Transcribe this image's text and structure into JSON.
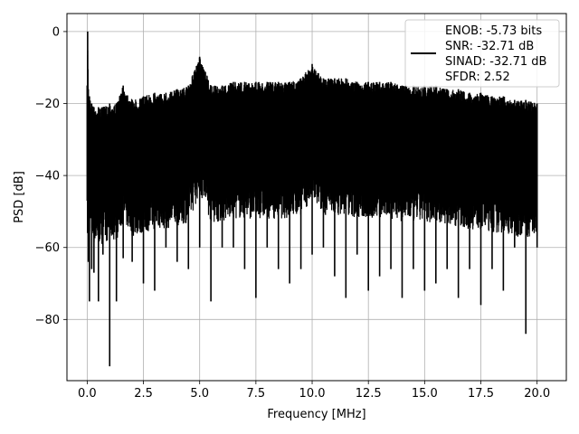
{
  "chart_data": {
    "type": "line",
    "xlabel": "Frequency [MHz]",
    "ylabel": "PSD [dB]",
    "xlim": [
      -0.9,
      21.3
    ],
    "ylim": [
      -97,
      5
    ],
    "xticks": [
      0.0,
      2.5,
      5.0,
      7.5,
      10.0,
      12.5,
      15.0,
      17.5,
      20.0
    ],
    "xtick_labels": [
      "0.0",
      "2.5",
      "5.0",
      "7.5",
      "10.0",
      "12.5",
      "15.0",
      "17.5",
      "20.0"
    ],
    "yticks": [
      0,
      -20,
      -40,
      -60,
      -80
    ],
    "ytick_labels": [
      "0",
      "−20",
      "−40",
      "−60",
      "−80"
    ],
    "grid": true,
    "legend_position": "top-right",
    "line_color": "#000000",
    "series": [
      {
        "name": "",
        "x": [
          0.0,
          0.02,
          0.05,
          0.1,
          0.2,
          0.3,
          0.5,
          0.7,
          1.0,
          1.3,
          1.6,
          2.0,
          2.5,
          3.0,
          3.5,
          4.0,
          4.5,
          5.0,
          5.5,
          6.0,
          6.5,
          7.0,
          7.5,
          8.0,
          8.5,
          9.0,
          9.5,
          10.0,
          10.5,
          11.0,
          11.5,
          12.0,
          12.5,
          13.0,
          13.5,
          14.0,
          14.5,
          15.0,
          15.5,
          16.0,
          16.5,
          17.0,
          17.5,
          18.0,
          18.5,
          19.0,
          19.5,
          20.0
        ],
        "upper": [
          -15,
          0,
          -16,
          -18,
          -20,
          -21,
          -21,
          -21,
          -20,
          -20,
          -15,
          -19,
          -18,
          -17,
          -17,
          -16,
          -15,
          -7,
          -15,
          -15,
          -14,
          -14,
          -14,
          -14,
          -14,
          -14,
          -13,
          -9,
          -13,
          -13,
          -13,
          -14,
          -14,
          -14,
          -14,
          -15,
          -15,
          -15,
          -15,
          -16,
          -16,
          -17,
          -17,
          -18,
          -18,
          -19,
          -19,
          -20
        ],
        "lower": [
          -47,
          -56,
          -64,
          -75,
          -66,
          -67,
          -75,
          -62,
          -93,
          -75,
          -63,
          -64,
          -70,
          -72,
          -60,
          -64,
          -66,
          -60,
          -75,
          -60,
          -60,
          -66,
          -74,
          -60,
          -66,
          -70,
          -66,
          -62,
          -60,
          -68,
          -74,
          -62,
          -72,
          -68,
          -66,
          -74,
          -66,
          -72,
          -70,
          -66,
          -74,
          -66,
          -76,
          -66,
          -72,
          -60,
          -84,
          -60
        ]
      }
    ],
    "legend": {
      "entries": [
        "ENOB: -5.73 bits",
        "SNR: -32.71 dB",
        "SINAD: -32.71 dB",
        "SFDR: 2.52"
      ]
    }
  }
}
